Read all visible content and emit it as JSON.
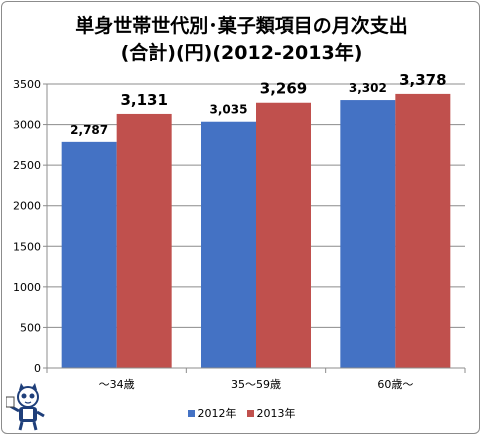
{
  "chart_data": {
    "type": "bar",
    "title": "単身世帯世代別･菓子類項目の月次支出",
    "subtitle": "(合計)(円)(2012-2013年)",
    "categories": [
      "～34歳",
      "35～59歳",
      "60歳～"
    ],
    "series": [
      {
        "name": "2012年",
        "values": [
          2787,
          3035,
          3302
        ],
        "labels": [
          "2,787",
          "3,035",
          "3,302"
        ],
        "color": "#4472c4"
      },
      {
        "name": "2013年",
        "values": [
          3131,
          3269,
          3378
        ],
        "labels": [
          "3,131",
          "3,269",
          "3,378"
        ],
        "color": "#c0504d"
      }
    ],
    "yticks": [
      "0",
      "500",
      "1000",
      "1500",
      "2000",
      "2500",
      "3000",
      "3500"
    ],
    "ylim": [
      0,
      3500
    ],
    "grid": true,
    "legend_position": "bottom"
  },
  "colors": {
    "grid": "#8c8c8c",
    "axis": "#8c8c8c"
  },
  "mascot_icon": "cat-mascot-icon"
}
